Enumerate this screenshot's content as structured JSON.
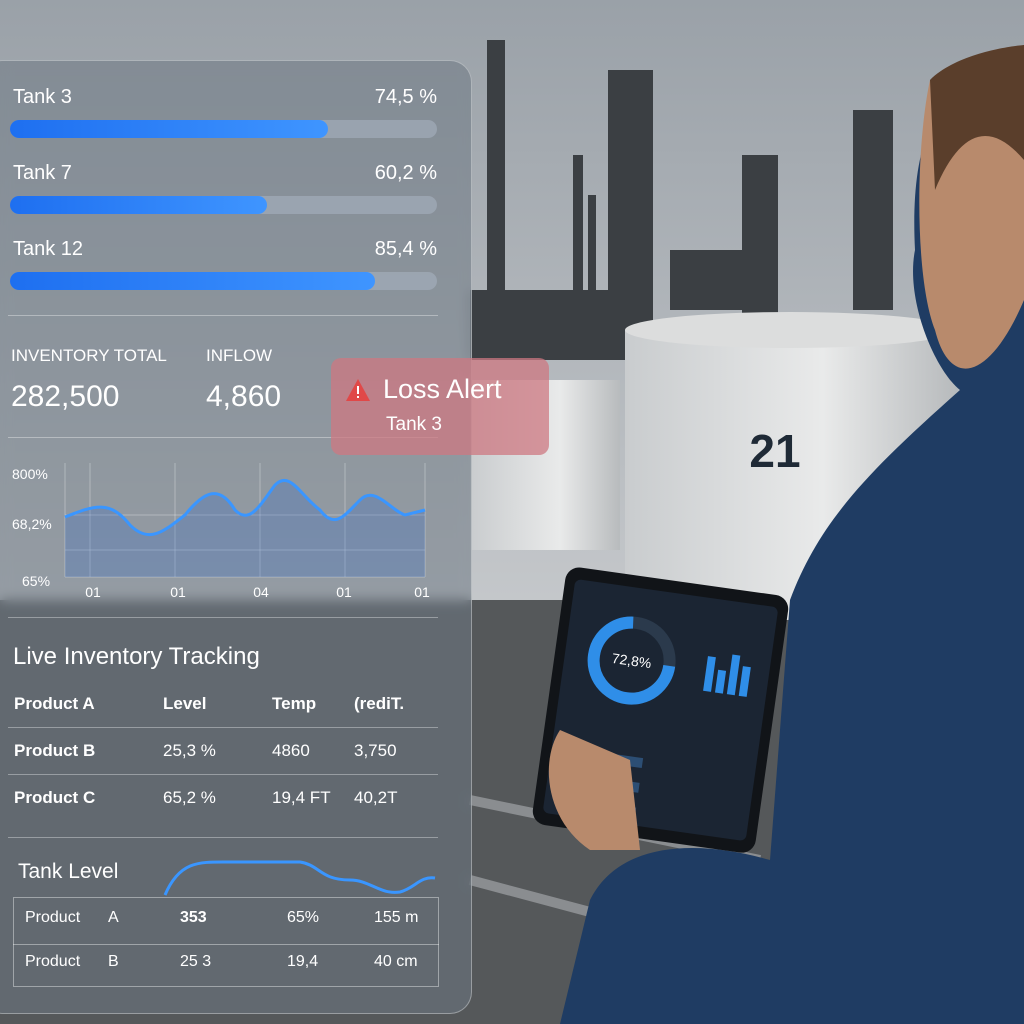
{
  "tanks": [
    {
      "name": "Tank 3",
      "value": 74.5,
      "label": "74,5 %"
    },
    {
      "name": "Tank 7",
      "value": 60.2,
      "label": "60,2 %"
    },
    {
      "name": "Tank 12",
      "value": 85.4,
      "label": "85,4 %"
    }
  ],
  "stats": [
    {
      "label": "INVENTORY TOTAL",
      "value": "282,500"
    },
    {
      "label": "INFLOW",
      "value": "4,860"
    }
  ],
  "alert": {
    "title": "Loss Alert",
    "subtitle": "Tank 3"
  },
  "mini_chart": {
    "y_labels": [
      "800%",
      "68,2%",
      "65%"
    ],
    "x_labels": [
      "01",
      "01",
      "04",
      "01",
      "01"
    ]
  },
  "tracking": {
    "title": "Live Inventory Tracking",
    "header": [
      "Product A",
      "Level",
      "Temp",
      "(rediT."
    ],
    "rows": [
      [
        "Product B",
        "25,3 %",
        "4860",
        "3,750"
      ],
      [
        "Product C",
        "65,2 %",
        "19,4 FT",
        "40,2T"
      ]
    ]
  },
  "tank_level": {
    "title": "Tank Level",
    "rows": [
      [
        "Product",
        "A",
        "353",
        "65%",
        "155 m"
      ],
      [
        "Product",
        "B",
        "25 3",
        "19,4",
        "40 cm"
      ]
    ]
  },
  "tank_number": "21",
  "tablet": {
    "donut": "72,8%"
  }
}
